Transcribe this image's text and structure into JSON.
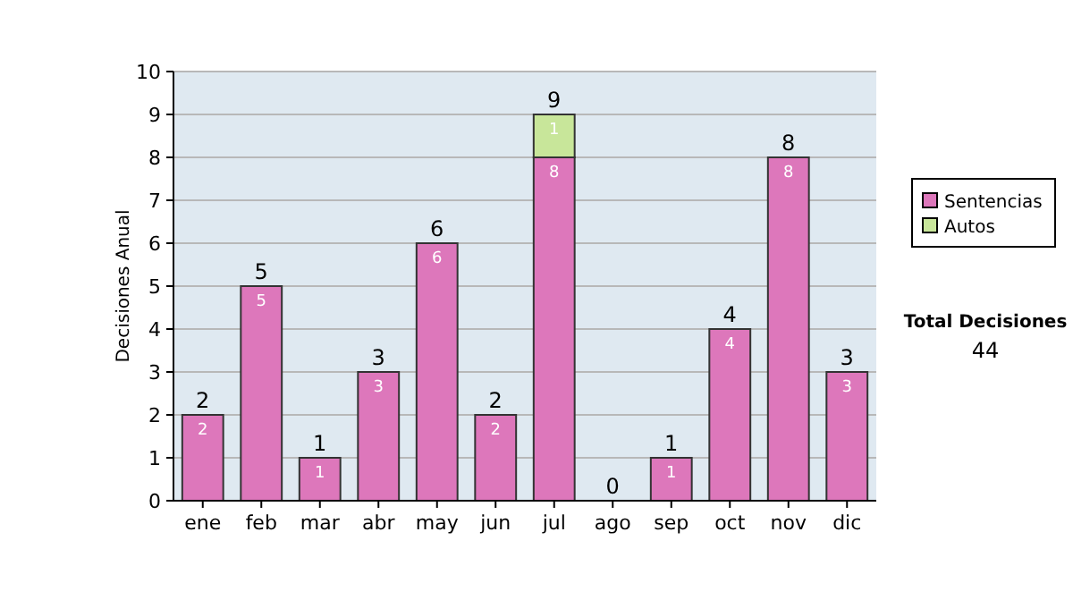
{
  "chart_data": {
    "type": "bar",
    "stacked": true,
    "ylabel": "Decisiones Anual",
    "categories": [
      "ene",
      "feb",
      "mar",
      "abr",
      "may",
      "jun",
      "jul",
      "ago",
      "sep",
      "oct",
      "nov",
      "dic"
    ],
    "series": [
      {
        "name": "Sentencias",
        "color": "#dd77bb",
        "values": [
          2,
          5,
          1,
          3,
          6,
          2,
          8,
          0,
          1,
          4,
          8,
          3
        ],
        "value_labels": [
          "2",
          "5",
          "1",
          "3",
          "6",
          "2",
          "8",
          null,
          "1",
          "4",
          "8",
          "3"
        ]
      },
      {
        "name": "Autos",
        "color": "#c8e69a",
        "values": [
          0,
          0,
          0,
          0,
          0,
          0,
          1,
          0,
          0,
          0,
          0,
          0
        ],
        "value_labels": [
          null,
          null,
          null,
          null,
          null,
          null,
          "1",
          null,
          null,
          null,
          null,
          null
        ]
      }
    ],
    "totals": [
      "2",
      "5",
      "1",
      "3",
      "6",
      "2",
      "9",
      "0",
      "1",
      "4",
      "8",
      "3"
    ],
    "ylim": [
      0,
      10
    ],
    "yticks": [
      0,
      1,
      2,
      3,
      4,
      5,
      6,
      7,
      8,
      9,
      10
    ],
    "grid": "y",
    "legend": "right",
    "annotations": [
      "Total Decisiones",
      "44"
    ]
  }
}
